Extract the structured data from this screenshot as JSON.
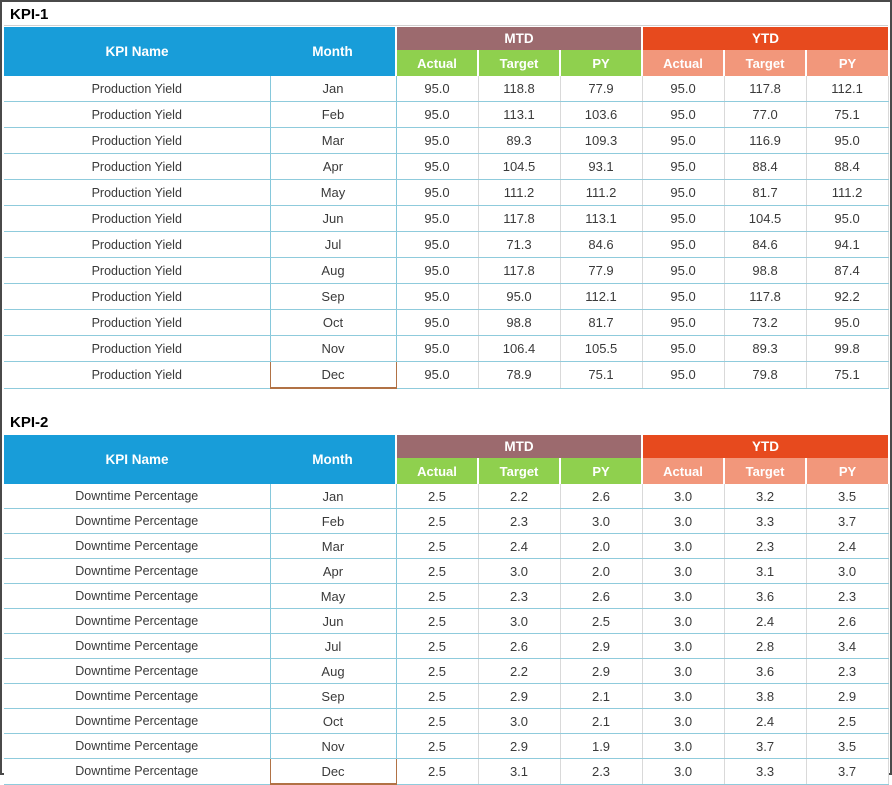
{
  "headers": {
    "kpi_name": "KPI Name",
    "month": "Month",
    "mtd": "MTD",
    "ytd": "YTD",
    "actual": "Actual",
    "target": "Target",
    "py": "PY"
  },
  "colors": {
    "header_blue": "#189dd9",
    "mtd_group": "#9c6a6e",
    "ytd_group": "#e74a1e",
    "mtd_sub_green": "#8fd04e",
    "ytd_sub_salmon": "#f2977b",
    "row_line_teal": "#8fcbdc",
    "column_line_gray": "#d9d9d9",
    "dec_cell_border_brown": "#b17245",
    "outer_border": "#4a4a4a"
  },
  "tables": [
    {
      "title": "KPI-1",
      "kpi_name": "Production Yield",
      "months": [
        "Jan",
        "Feb",
        "Mar",
        "Apr",
        "May",
        "Jun",
        "Jul",
        "Aug",
        "Sep",
        "Oct",
        "Nov",
        "Dec"
      ],
      "rows": [
        [
          "95.0",
          "118.8",
          "77.9",
          "95.0",
          "117.8",
          "112.1"
        ],
        [
          "95.0",
          "113.1",
          "103.6",
          "95.0",
          "77.0",
          "75.1"
        ],
        [
          "95.0",
          "89.3",
          "109.3",
          "95.0",
          "116.9",
          "95.0"
        ],
        [
          "95.0",
          "104.5",
          "93.1",
          "95.0",
          "88.4",
          "88.4"
        ],
        [
          "95.0",
          "111.2",
          "111.2",
          "95.0",
          "81.7",
          "111.2"
        ],
        [
          "95.0",
          "117.8",
          "113.1",
          "95.0",
          "104.5",
          "95.0"
        ],
        [
          "95.0",
          "71.3",
          "84.6",
          "95.0",
          "84.6",
          "94.1"
        ],
        [
          "95.0",
          "117.8",
          "77.9",
          "95.0",
          "98.8",
          "87.4"
        ],
        [
          "95.0",
          "95.0",
          "112.1",
          "95.0",
          "117.8",
          "92.2"
        ],
        [
          "95.0",
          "98.8",
          "81.7",
          "95.0",
          "73.2",
          "95.0"
        ],
        [
          "95.0",
          "106.4",
          "105.5",
          "95.0",
          "89.3",
          "99.8"
        ],
        [
          "95.0",
          "78.9",
          "75.1",
          "95.0",
          "79.8",
          "75.1"
        ]
      ]
    },
    {
      "title": "KPI-2",
      "kpi_name": "Downtime Percentage",
      "months": [
        "Jan",
        "Feb",
        "Mar",
        "Apr",
        "May",
        "Jun",
        "Jul",
        "Aug",
        "Sep",
        "Oct",
        "Nov",
        "Dec"
      ],
      "rows": [
        [
          "2.5",
          "2.2",
          "2.6",
          "3.0",
          "3.2",
          "3.5"
        ],
        [
          "2.5",
          "2.3",
          "3.0",
          "3.0",
          "3.3",
          "3.7"
        ],
        [
          "2.5",
          "2.4",
          "2.0",
          "3.0",
          "2.3",
          "2.4"
        ],
        [
          "2.5",
          "3.0",
          "2.0",
          "3.0",
          "3.1",
          "3.0"
        ],
        [
          "2.5",
          "2.3",
          "2.6",
          "3.0",
          "3.6",
          "2.3"
        ],
        [
          "2.5",
          "3.0",
          "2.5",
          "3.0",
          "2.4",
          "2.6"
        ],
        [
          "2.5",
          "2.6",
          "2.9",
          "3.0",
          "2.8",
          "3.4"
        ],
        [
          "2.5",
          "2.2",
          "2.9",
          "3.0",
          "3.6",
          "2.3"
        ],
        [
          "2.5",
          "2.9",
          "2.1",
          "3.0",
          "3.8",
          "2.9"
        ],
        [
          "2.5",
          "3.0",
          "2.1",
          "3.0",
          "2.4",
          "2.5"
        ],
        [
          "2.5",
          "2.9",
          "1.9",
          "3.0",
          "3.7",
          "3.5"
        ],
        [
          "2.5",
          "3.1",
          "2.3",
          "3.0",
          "3.3",
          "3.7"
        ]
      ]
    }
  ]
}
